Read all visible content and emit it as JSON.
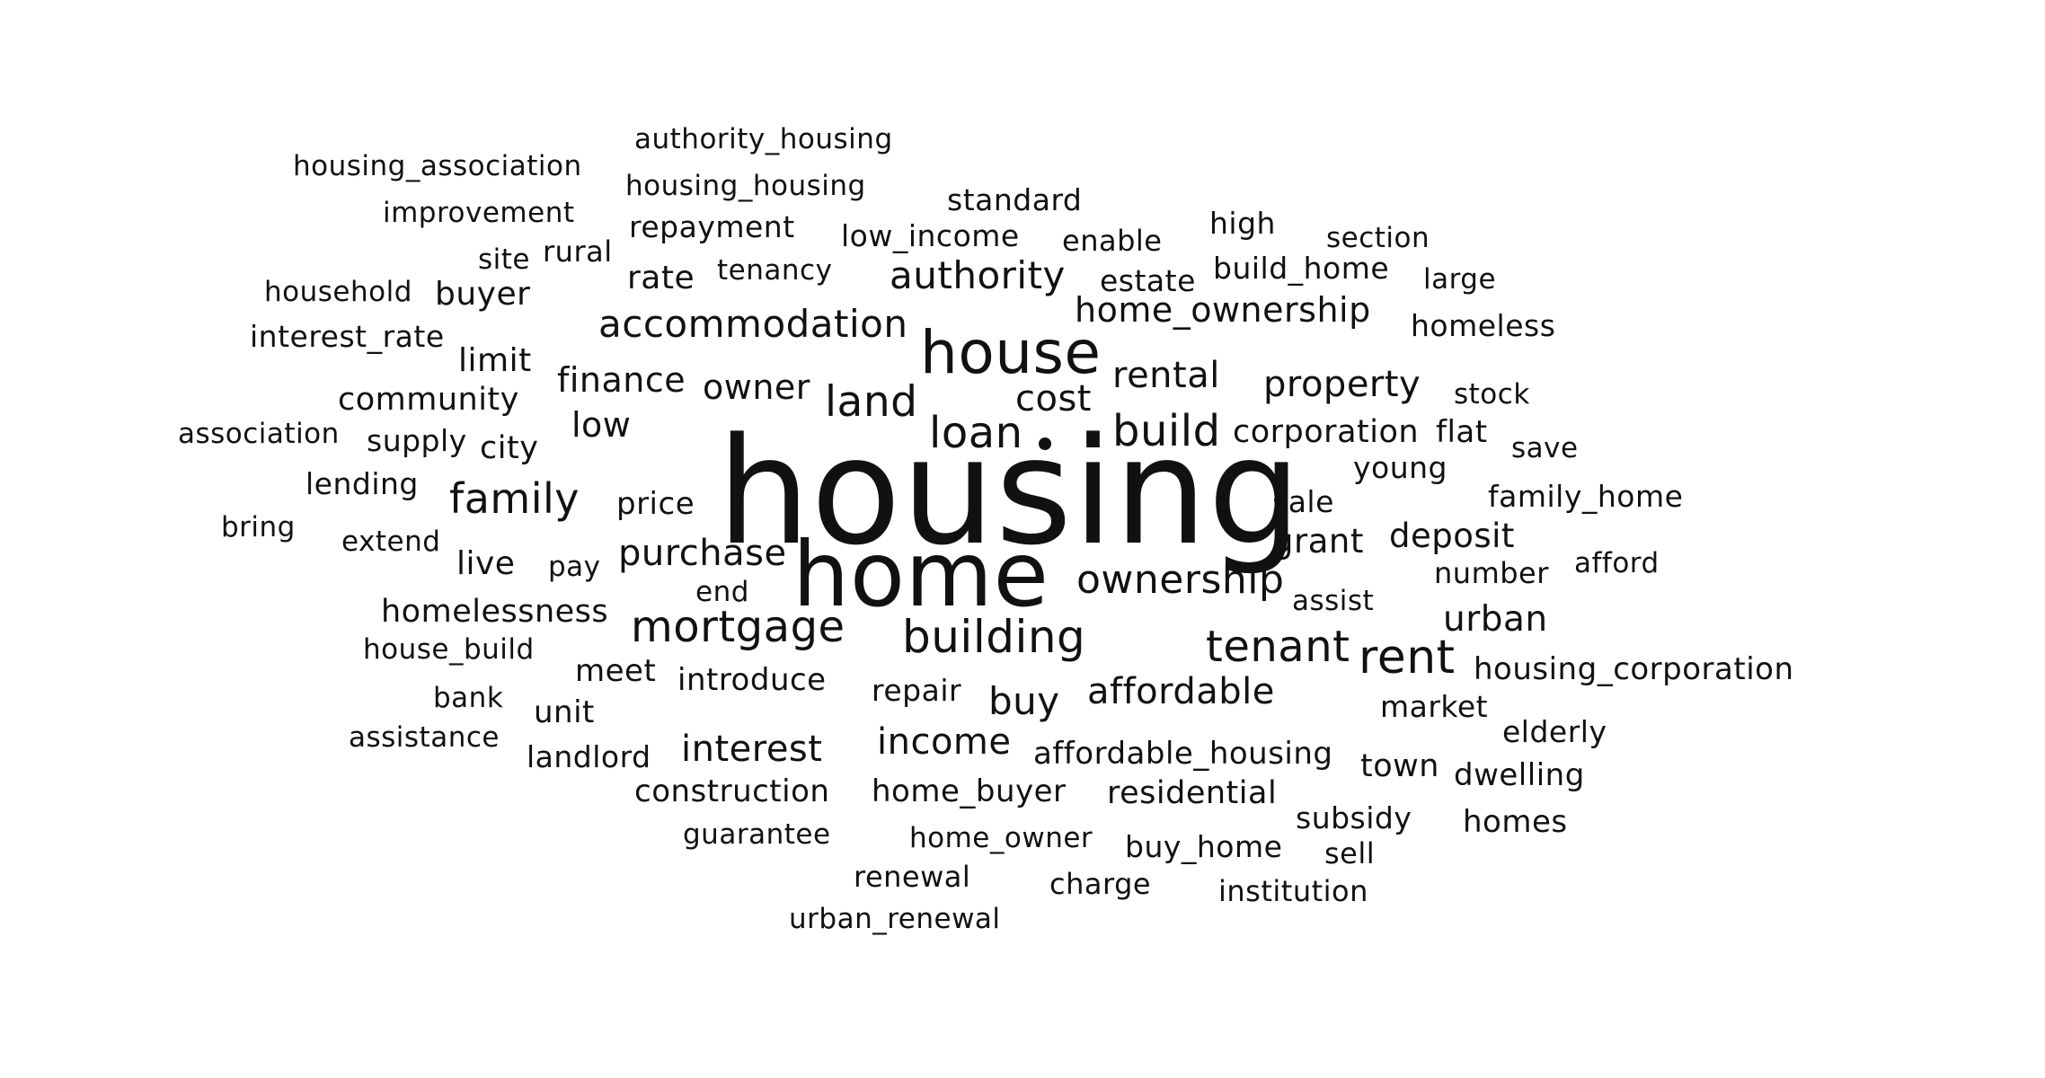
{
  "colors": {
    "background": "#ffffff",
    "text": "#111111"
  },
  "words": [
    "authority_housing",
    "housing_association",
    "housing_housing",
    "improvement",
    "standard",
    "repayment",
    "low_income",
    "high",
    "section",
    "rural",
    "enable",
    "site",
    "build_home",
    "household",
    "buyer",
    "rate",
    "tenancy",
    "authority",
    "estate",
    "large",
    "accommodation",
    "home_ownership",
    "interest_rate",
    "homeless",
    "house",
    "limit",
    "finance",
    "owner",
    "rental",
    "property",
    "community",
    "land",
    "cost",
    "stock",
    "association",
    "low",
    "loan",
    "build",
    "corporation",
    "flat",
    "supply",
    "city",
    "save",
    "housing",
    "young",
    "lending",
    "family",
    "price",
    "sale",
    "family_home",
    "bring",
    "deposit",
    "extend",
    "grant",
    "live",
    "pay",
    "purchase",
    "afford",
    "number",
    "end",
    "home",
    "ownership",
    "homelessness",
    "assist",
    "urban",
    "mortgage",
    "house_build",
    "tenant",
    "building",
    "rent",
    "meet",
    "introduce",
    "housing_corporation",
    "bank",
    "repair",
    "buy",
    "affordable",
    "unit",
    "market",
    "assistance",
    "elderly",
    "interest",
    "income",
    "landlord",
    "affordable_housing",
    "town",
    "dwelling",
    "construction",
    "home_buyer",
    "residential",
    "subsidy",
    "guarantee",
    "homes",
    "home_owner",
    "buy_home",
    "sell",
    "renewal",
    "charge",
    "institution",
    "urban_renewal"
  ]
}
